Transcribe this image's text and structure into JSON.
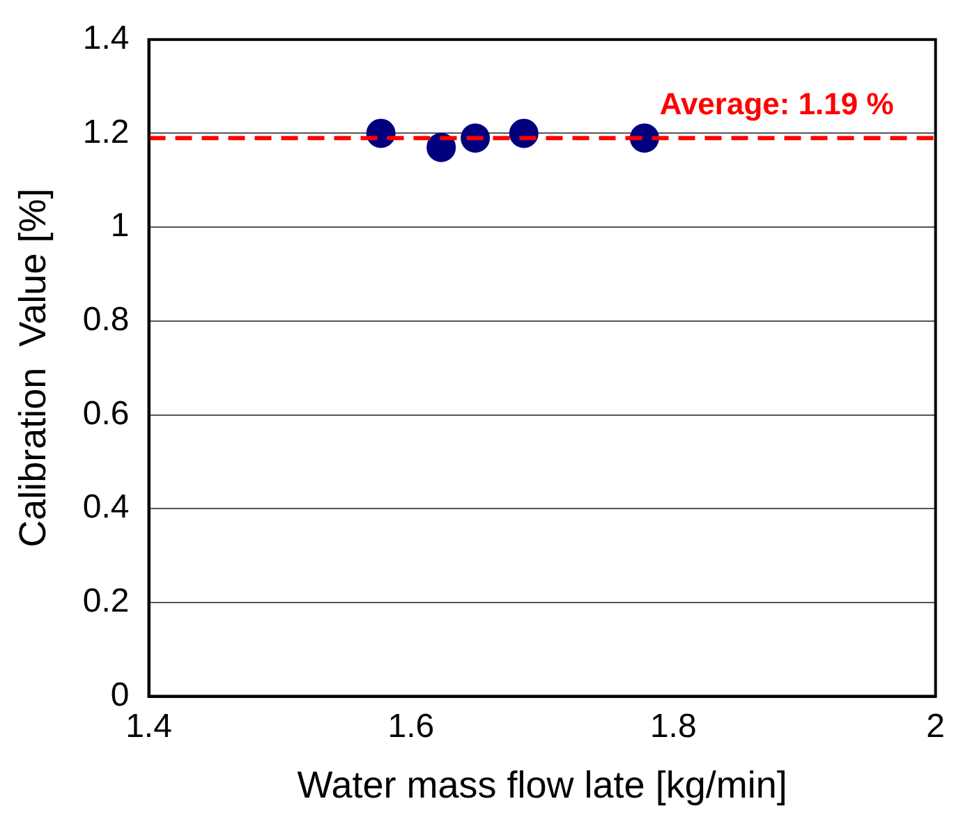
{
  "chart_data": {
    "type": "scatter",
    "xlabel": "Water mass flow late [kg/min]",
    "ylabel": "Calibration  Value [%]",
    "x": [
      1.577,
      1.623,
      1.649,
      1.686,
      1.778
    ],
    "series": [
      {
        "color": "#00007f",
        "values": [
          1.2,
          1.17,
          1.19,
          1.2,
          1.19
        ]
      }
    ],
    "xlim": [
      1.4,
      2
    ],
    "xticks": [
      1.4,
      1.6,
      1.8,
      2
    ],
    "ylim": [
      0,
      1.4
    ],
    "yticks": [
      0,
      0.2,
      0.4,
      0.6,
      0.8,
      1,
      1.2,
      1.4
    ],
    "grid": "y",
    "legend": false,
    "marker": "circle",
    "ref_lines": [
      {
        "axis": "y",
        "value": 1.19,
        "label": "Average: 1.19 %",
        "color": "#ff0000",
        "line_style": "dashed"
      }
    ]
  }
}
